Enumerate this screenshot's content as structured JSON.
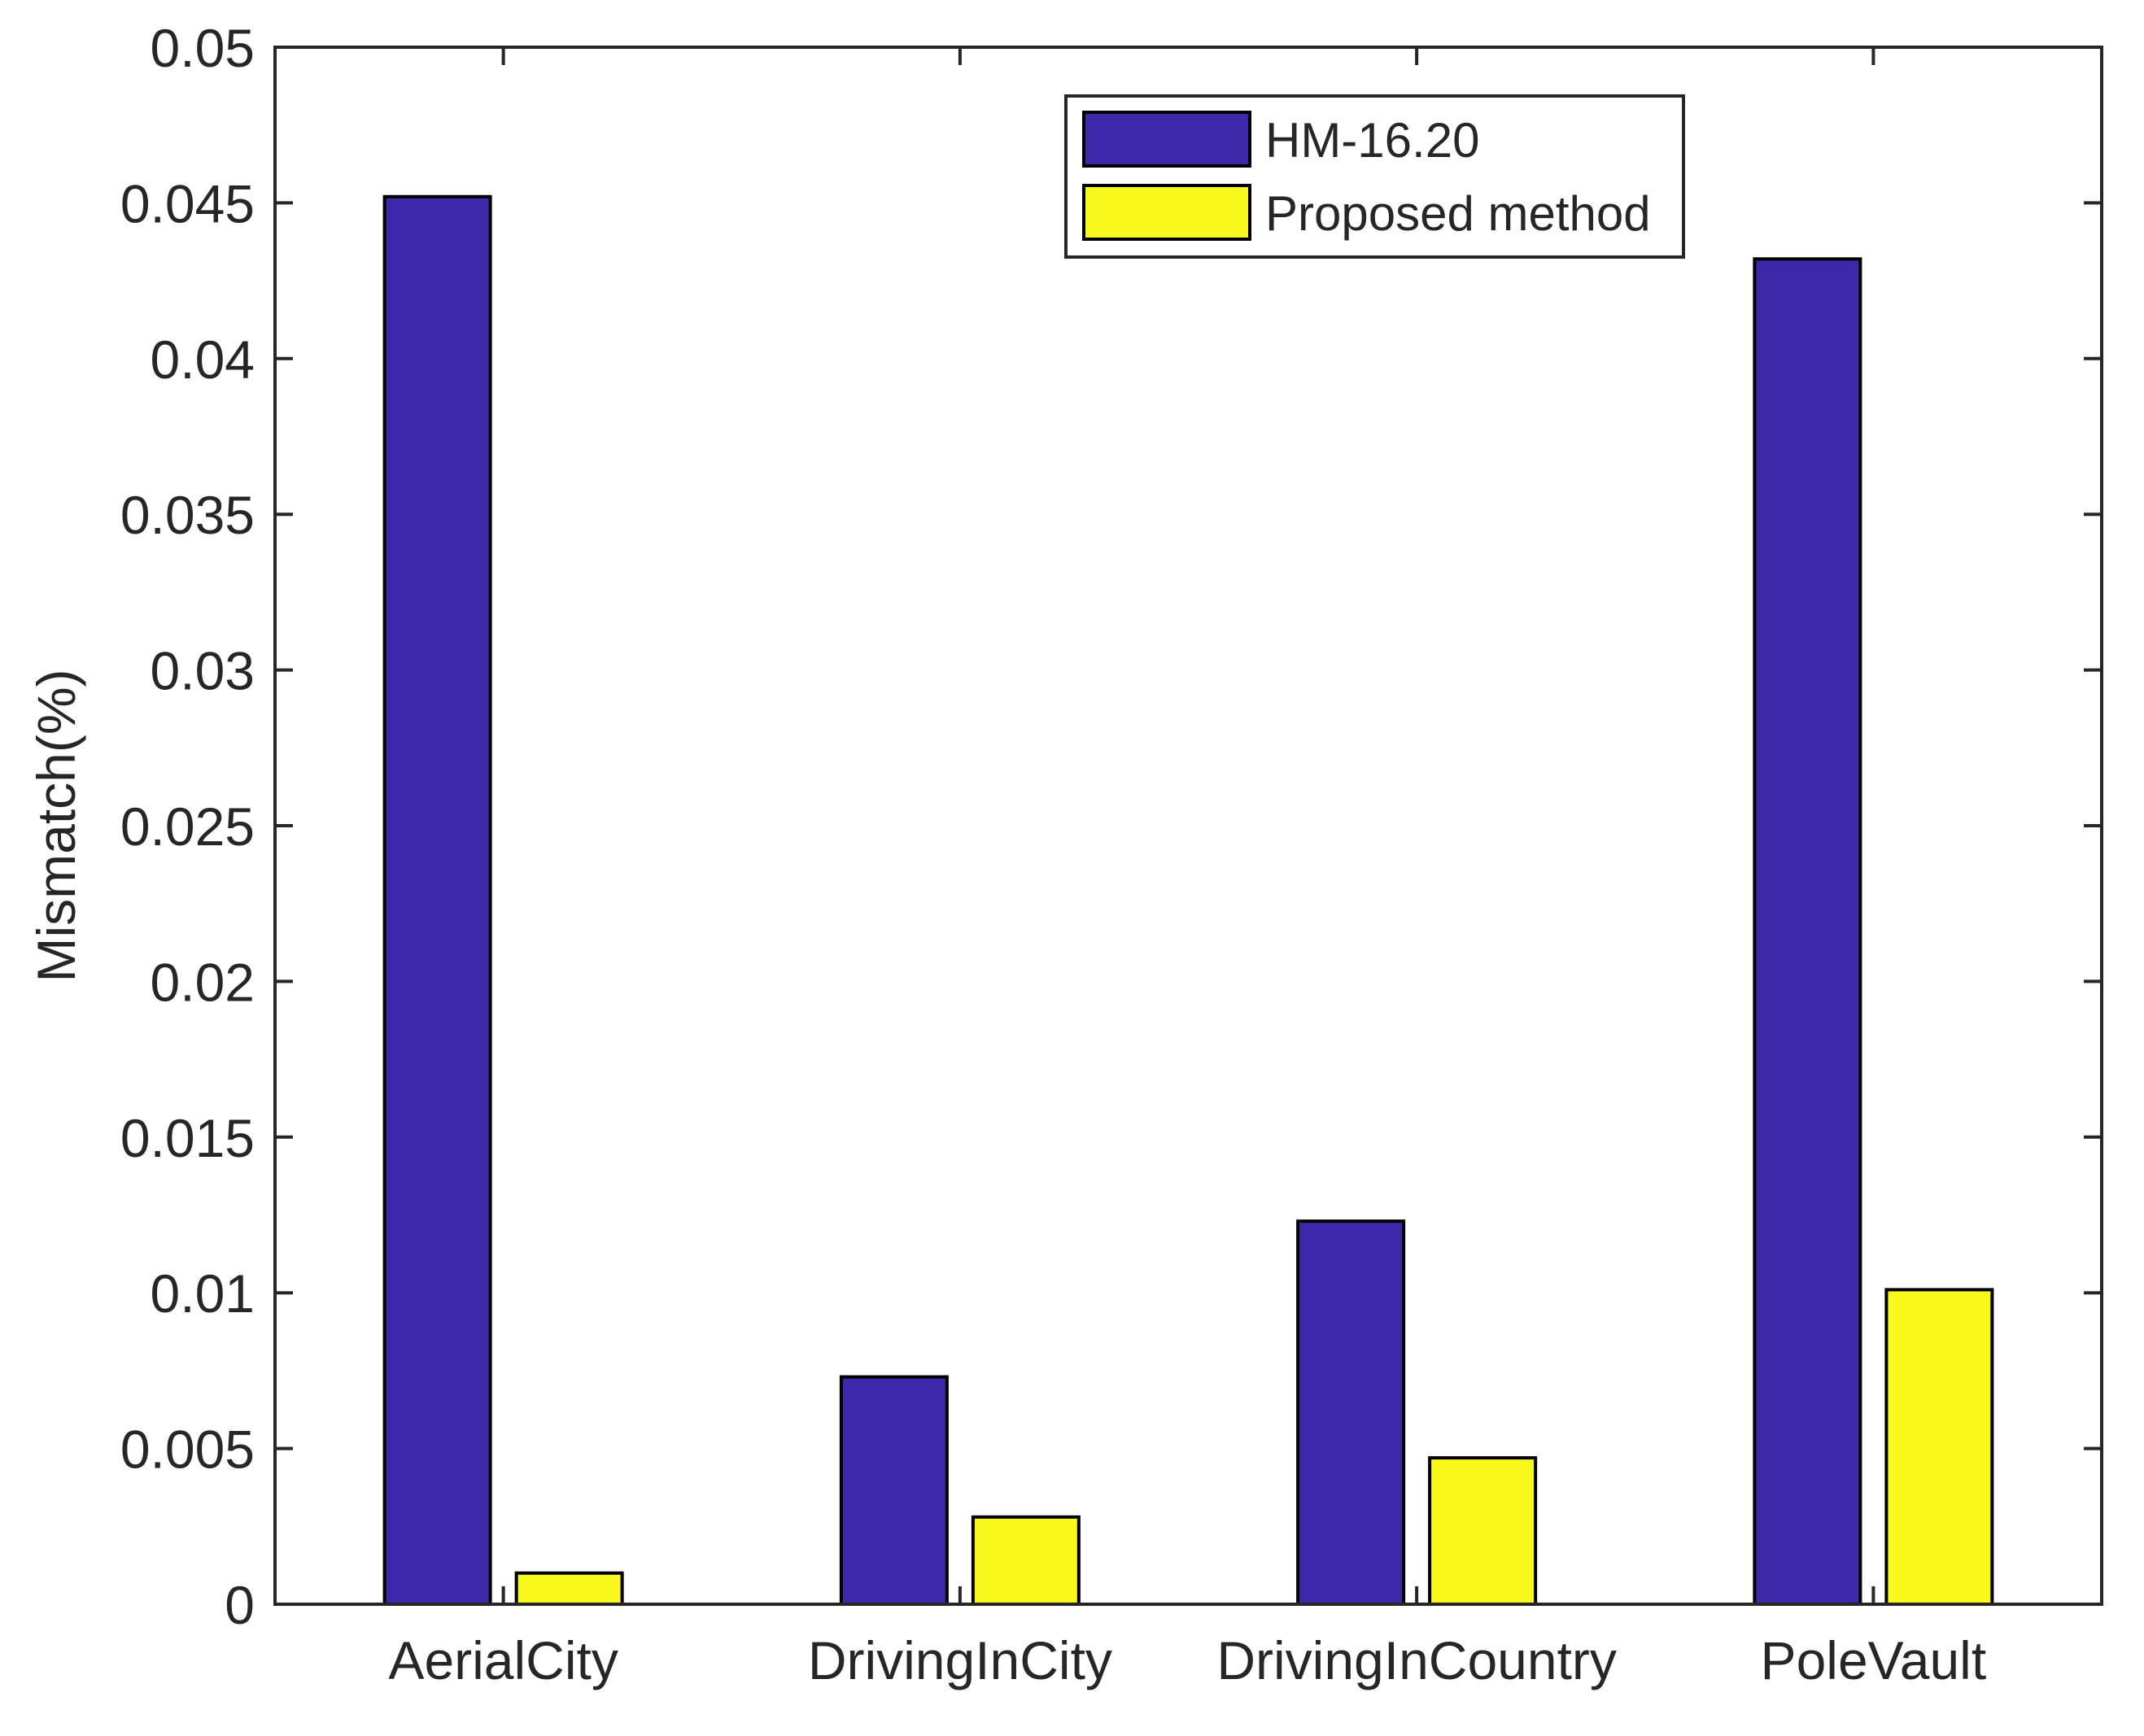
{
  "chart_data": {
    "type": "bar",
    "title": "",
    "xlabel": "",
    "ylabel": "Mismatch(%)",
    "categories": [
      "AerialCity",
      "DrivingInCity",
      "DrivingInCountry",
      "PoleVault"
    ],
    "series": [
      {
        "name": "HM-16.20",
        "color": "#3c28a8",
        "values": [
          0.0452,
          0.0073,
          0.0123,
          0.0432
        ]
      },
      {
        "name": "Proposed method",
        "color": "#f8f81c",
        "values": [
          0.001,
          0.0028,
          0.0047,
          0.0101
        ]
      }
    ],
    "ylim": [
      0,
      0.05
    ],
    "yticks": [
      "0",
      "0.005",
      "0.01",
      "0.015",
      "0.02",
      "0.025",
      "0.03",
      "0.035",
      "0.04",
      "0.045",
      "0.05"
    ],
    "grid": false,
    "legend_position": "top-right"
  }
}
